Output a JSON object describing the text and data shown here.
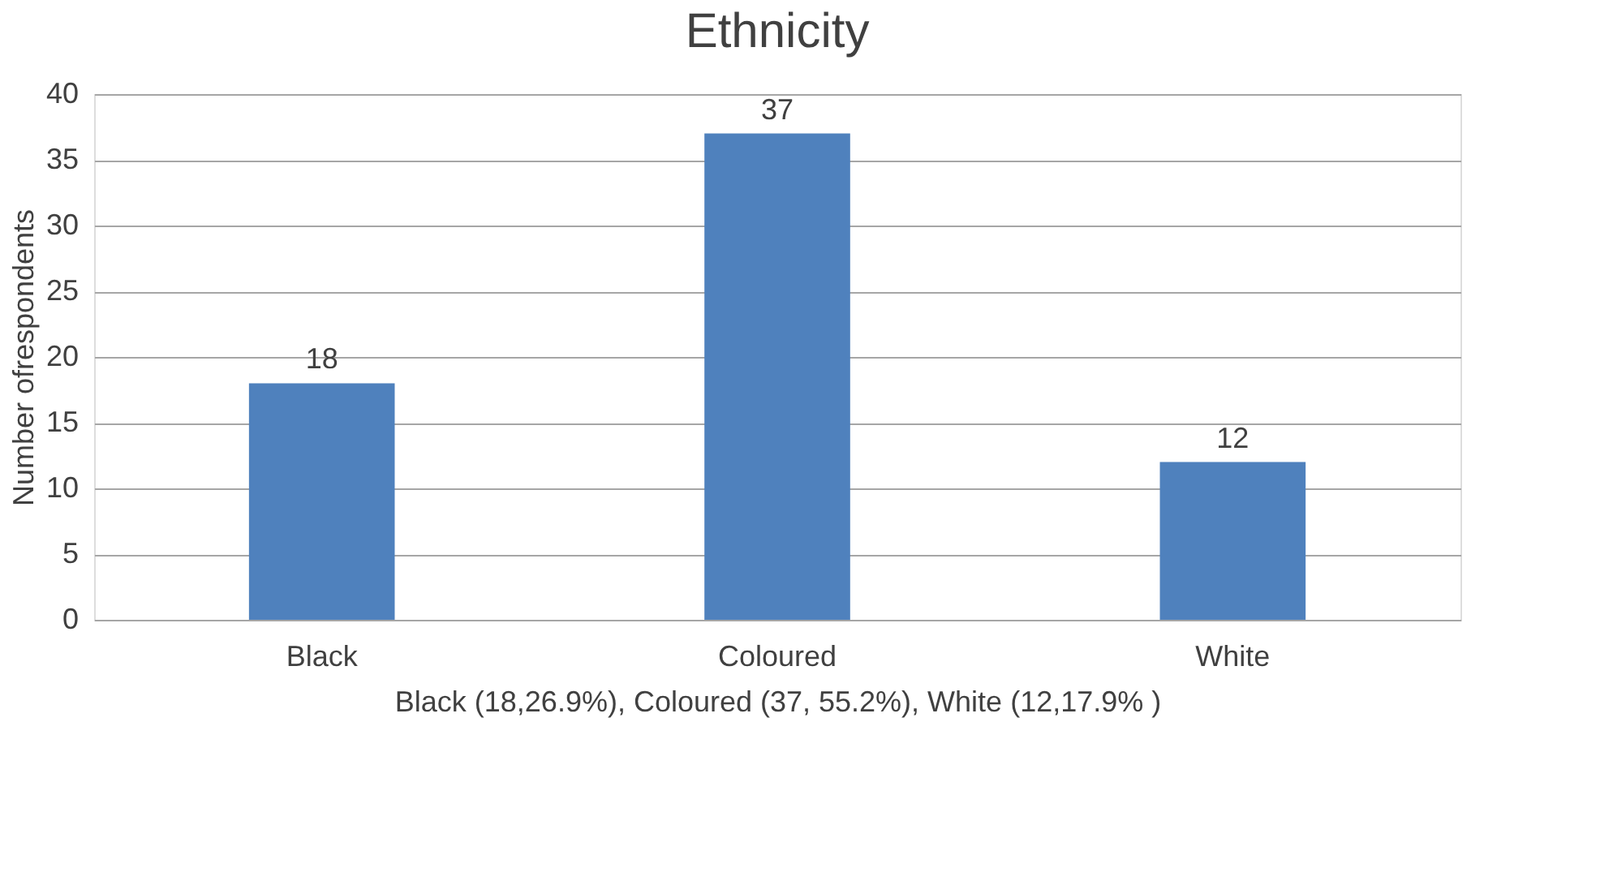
{
  "chart_data": {
    "type": "bar",
    "title": "Ethnicity",
    "xlabel": "Black (18,26.9%), Coloured (37, 55.2%), White (12,17.9% )",
    "ylabel": "Number ofrespondents",
    "categories": [
      "Black",
      "Coloured",
      "White"
    ],
    "values": [
      18,
      37,
      12
    ],
    "color": "#4f81bd",
    "ylim": [
      0,
      40
    ],
    "yticks": [
      0,
      5,
      10,
      15,
      20,
      25,
      30,
      35,
      40
    ],
    "grid": "y",
    "data_labels": true
  }
}
